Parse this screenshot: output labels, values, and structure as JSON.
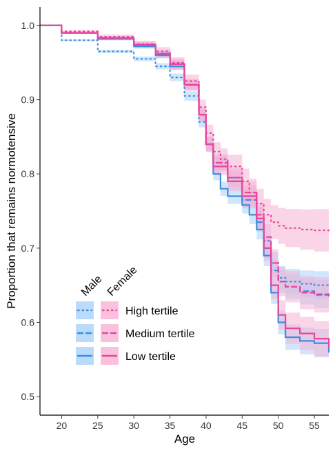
{
  "chart_data": {
    "type": "line",
    "xlabel": "Age",
    "ylabel": "Proportion that remains normotensive",
    "xlim": [
      17,
      57
    ],
    "ylim": [
      0.475,
      1.025
    ],
    "x_ticks": [
      20,
      25,
      30,
      35,
      40,
      45,
      50,
      55
    ],
    "y_ticks": [
      0.5,
      0.6,
      0.7,
      0.8,
      0.9,
      1.0
    ],
    "x_tick_labels": [
      "20",
      "25",
      "30",
      "35",
      "40",
      "45",
      "50",
      "55"
    ],
    "y_tick_labels": [
      "0.5",
      "0.6",
      "0.7",
      "0.8",
      "0.9",
      "1.0"
    ],
    "grid": false,
    "legend": {
      "placement": "bottom-left",
      "column_headers": [
        "Male",
        "Female"
      ],
      "row_labels": [
        "High tertile",
        "Medium tertile",
        "Low tertile"
      ]
    },
    "colors": {
      "male": "#3a8ee6",
      "female": "#e8459b",
      "male_band": "#a9d2f7",
      "female_band": "#f6b3d6"
    },
    "series": [
      {
        "sex": "Male",
        "tertile": "High",
        "linestyle": "dotted",
        "x": [
          17,
          20,
          25,
          30,
          33,
          35,
          37,
          39,
          40,
          41,
          43,
          45,
          47,
          48,
          49,
          50,
          51,
          53,
          55,
          57
        ],
        "y": [
          1.0,
          0.98,
          0.965,
          0.955,
          0.945,
          0.93,
          0.905,
          0.87,
          0.84,
          0.815,
          0.795,
          0.77,
          0.74,
          0.71,
          0.68,
          0.66,
          0.655,
          0.652,
          0.65,
          0.648
        ],
        "band_halfwidth": 0.02
      },
      {
        "sex": "Male",
        "tertile": "Medium",
        "linestyle": "dashed",
        "x": [
          17,
          20,
          25,
          30,
          33,
          35,
          37,
          39,
          40,
          41,
          43,
          45,
          47,
          48,
          49,
          50,
          51,
          53,
          55,
          57
        ],
        "y": [
          1.0,
          0.99,
          0.982,
          0.972,
          0.96,
          0.945,
          0.92,
          0.88,
          0.84,
          0.815,
          0.79,
          0.765,
          0.735,
          0.7,
          0.67,
          0.655,
          0.648,
          0.642,
          0.638,
          0.635
        ],
        "band_halfwidth": 0.02
      },
      {
        "sex": "Male",
        "tertile": "Low",
        "linestyle": "solid",
        "x": [
          17,
          20,
          25,
          30,
          33,
          35,
          37,
          39,
          40,
          41,
          42,
          43,
          45,
          46,
          47,
          48,
          49,
          50,
          51,
          53,
          55,
          57
        ],
        "y": [
          1.0,
          0.99,
          0.982,
          0.972,
          0.96,
          0.945,
          0.92,
          0.88,
          0.84,
          0.8,
          0.78,
          0.77,
          0.758,
          0.745,
          0.725,
          0.69,
          0.64,
          0.6,
          0.58,
          0.575,
          0.572,
          0.56
        ],
        "band_halfwidth": 0.02
      },
      {
        "sex": "Female",
        "tertile": "High",
        "linestyle": "dotted",
        "x": [
          17,
          20,
          25,
          30,
          33,
          35,
          37,
          39,
          40,
          41,
          42,
          43,
          45,
          46,
          47,
          48,
          49,
          50,
          51,
          53,
          55,
          57
        ],
        "y": [
          1.0,
          0.992,
          0.985,
          0.975,
          0.965,
          0.95,
          0.925,
          0.89,
          0.855,
          0.83,
          0.82,
          0.81,
          0.79,
          0.775,
          0.76,
          0.745,
          0.735,
          0.73,
          0.727,
          0.725,
          0.724,
          0.722
        ],
        "band_halfwidth": 0.03
      },
      {
        "sex": "Female",
        "tertile": "Medium",
        "linestyle": "dashed",
        "x": [
          17,
          20,
          25,
          30,
          33,
          35,
          37,
          39,
          40,
          41,
          43,
          45,
          47,
          48,
          49,
          50,
          51,
          53,
          55,
          57
        ],
        "y": [
          1.0,
          0.99,
          0.983,
          0.974,
          0.962,
          0.948,
          0.92,
          0.88,
          0.84,
          0.815,
          0.795,
          0.775,
          0.745,
          0.715,
          0.68,
          0.655,
          0.648,
          0.64,
          0.637,
          0.633
        ],
        "band_halfwidth": 0.025
      },
      {
        "sex": "Female",
        "tertile": "Low",
        "linestyle": "solid",
        "x": [
          17,
          20,
          25,
          30,
          33,
          35,
          37,
          39,
          40,
          41,
          43,
          45,
          47,
          48,
          49,
          50,
          51,
          53,
          55,
          57
        ],
        "y": [
          1.0,
          0.99,
          0.983,
          0.974,
          0.962,
          0.948,
          0.92,
          0.88,
          0.84,
          0.81,
          0.79,
          0.77,
          0.74,
          0.7,
          0.65,
          0.61,
          0.592,
          0.585,
          0.578,
          0.568
        ],
        "band_halfwidth": 0.025
      }
    ]
  }
}
